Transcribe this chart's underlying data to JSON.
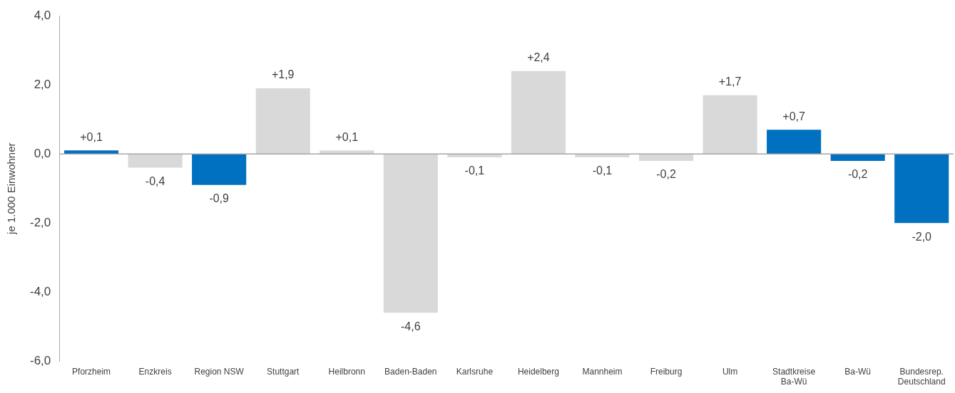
{
  "chart_data": {
    "type": "bar",
    "ylabel": "je 1.000 Einwohner",
    "categories": [
      "Pforzheim",
      "Enzkreis",
      "Region NSW",
      "Stuttgart",
      "Heilbronn",
      "Baden-Baden",
      "Karlsruhe",
      "Heidelberg",
      "Mannheim",
      "Freiburg",
      "Ulm",
      "Stadtkreise\nBa-Wü",
      "Ba-Wü",
      "Bundesrep.\nDeutschland"
    ],
    "values": [
      0.1,
      -0.4,
      -0.9,
      1.9,
      0.1,
      -4.6,
      -0.1,
      2.4,
      -0.1,
      -0.2,
      1.7,
      0.7,
      -0.2,
      -2.0
    ],
    "value_labels": [
      "+0,1",
      "-0,4",
      "-0,9",
      "+1,9",
      "+0,1",
      "-4,6",
      "-0,1",
      "+2,4",
      "-0,1",
      "-0,2",
      "+1,7",
      "+0,7",
      "-0,2",
      "-2,0"
    ],
    "colors": [
      "#0070c0",
      "#d9d9d9",
      "#0070c0",
      "#d9d9d9",
      "#d9d9d9",
      "#d9d9d9",
      "#d9d9d9",
      "#d9d9d9",
      "#d9d9d9",
      "#d9d9d9",
      "#d9d9d9",
      "#0070c0",
      "#0070c0",
      "#0070c0"
    ],
    "ylim": [
      -6,
      4
    ],
    "yticks": [
      {
        "value": -6,
        "label": "-6,0"
      },
      {
        "value": -4,
        "label": "-4,0"
      },
      {
        "value": -2,
        "label": "-2,0"
      },
      {
        "value": 0,
        "label": "0,0"
      },
      {
        "value": 2,
        "label": "2,0"
      },
      {
        "value": 4,
        "label": "4,0"
      }
    ],
    "ref_lines": [
      {
        "axis": "y",
        "value": 0,
        "color": "#a6a6a6"
      }
    ],
    "grid": false,
    "legend": false
  }
}
